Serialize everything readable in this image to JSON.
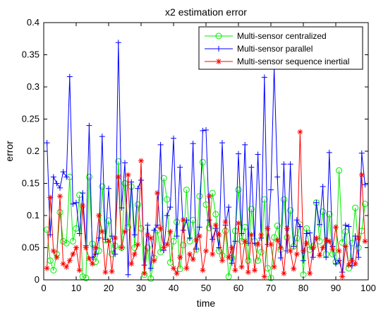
{
  "chart_data": {
    "type": "line",
    "title": "x2 estimation error",
    "xlabel": "time",
    "ylabel": "error",
    "xlim": [
      0,
      100
    ],
    "ylim": [
      0,
      0.4
    ],
    "xticks": [
      0,
      10,
      20,
      30,
      40,
      50,
      60,
      70,
      80,
      90,
      100
    ],
    "yticks": [
      0,
      0.05,
      0.1,
      0.15,
      0.2,
      0.25,
      0.3,
      0.35,
      0.4
    ],
    "ytick_labels": [
      "0",
      "0.05",
      "0.1",
      "0.15",
      "0.2",
      "0.25",
      "0.3",
      "0.35",
      "0.4"
    ],
    "legend_position": "top-right",
    "x": [
      1,
      2,
      3,
      4,
      5,
      6,
      7,
      8,
      9,
      10,
      11,
      12,
      13,
      14,
      15,
      16,
      17,
      18,
      19,
      20,
      21,
      22,
      23,
      24,
      25,
      26,
      27,
      28,
      29,
      30,
      31,
      32,
      33,
      34,
      35,
      36,
      37,
      38,
      39,
      40,
      41,
      42,
      43,
      44,
      45,
      46,
      47,
      48,
      49,
      50,
      51,
      52,
      53,
      54,
      55,
      56,
      57,
      58,
      59,
      60,
      61,
      62,
      63,
      64,
      65,
      66,
      67,
      68,
      69,
      70,
      71,
      72,
      73,
      74,
      75,
      76,
      77,
      78,
      79,
      80,
      81,
      82,
      83,
      84,
      85,
      86,
      87,
      88,
      89,
      90,
      91,
      92,
      93,
      94,
      95,
      96,
      97,
      98,
      99
    ],
    "series": [
      {
        "name": "Multi-sensor centralized",
        "color": "#00ee00",
        "marker": "circle",
        "values": [
          0.078,
          0.03,
          0.015,
          0.04,
          0.105,
          0.06,
          0.057,
          0.16,
          0.06,
          0.08,
          0.132,
          0.005,
          0.003,
          0.16,
          0.056,
          0.028,
          0.045,
          0.145,
          0.062,
          0.092,
          0.04,
          0.053,
          0.184,
          0.05,
          0.15,
          0.082,
          0.145,
          0.05,
          0.117,
          0.08,
          0.008,
          0.05,
          0.002,
          0.034,
          0.077,
          0.043,
          0.158,
          0.125,
          0.027,
          0.06,
          0.09,
          0.017,
          0.054,
          0.14,
          0.06,
          0.093,
          0.047,
          0.13,
          0.183,
          0.117,
          0.081,
          0.135,
          0.102,
          0.045,
          0.038,
          0.076,
          0.005,
          0.034,
          0.076,
          0.14,
          0.06,
          0.082,
          0.03,
          0.11,
          0.06,
          0.03,
          0.043,
          0.125,
          0.018,
          0.003,
          0.066,
          0.084,
          0.047,
          0.125,
          0.066,
          0.108,
          0.052,
          0.065,
          0.086,
          0.008,
          0.08,
          0.047,
          0.052,
          0.12,
          0.06,
          0.106,
          0.04,
          0.102,
          0.04,
          0.028,
          0.17,
          0.058,
          0.075,
          0.018,
          0.057,
          0.112,
          0.05,
          0.076,
          0.118
        ]
      },
      {
        "name": "Multi-sensor parallel",
        "color": "#0000ff",
        "marker": "plus",
        "values": [
          0.213,
          0.07,
          0.16,
          0.15,
          0.143,
          0.168,
          0.16,
          0.316,
          0.118,
          0.12,
          0.072,
          0.135,
          0.053,
          0.24,
          0.035,
          0.04,
          0.065,
          0.223,
          0.063,
          0.142,
          0.068,
          0.04,
          0.369,
          0.112,
          0.182,
          0.008,
          0.152,
          0.07,
          0.142,
          0.155,
          0.023,
          0.085,
          0.018,
          0.077,
          0.085,
          0.21,
          0.046,
          0.1,
          0.113,
          0.22,
          0.068,
          0.175,
          0.077,
          0.093,
          0.065,
          0.212,
          0.048,
          0.082,
          0.232,
          0.233,
          0.093,
          0.063,
          0.08,
          0.05,
          0.213,
          0.085,
          0.113,
          0.026,
          0.06,
          0.196,
          0.072,
          0.21,
          0.057,
          0.175,
          0.057,
          0.195,
          0.065,
          0.315,
          0.055,
          0.14,
          0.33,
          0.16,
          0.034,
          0.18,
          0.045,
          0.18,
          0.052,
          0.093,
          0.083,
          0.03,
          0.072,
          0.073,
          0.035,
          0.12,
          0.086,
          0.145,
          0.035,
          0.198,
          0.052,
          0.025,
          0.03,
          0.012,
          0.085,
          0.083,
          0.022,
          0.068,
          0.035,
          0.197,
          0.148
        ]
      },
      {
        "name": "Multi-sensor sequence inertial",
        "color": "#ff0000",
        "marker": "asterisk",
        "values": [
          0.018,
          0.128,
          0.045,
          0.035,
          0.13,
          0.025,
          0.02,
          0.03,
          0.04,
          0.05,
          0.015,
          0.115,
          0.05,
          0.033,
          0.025,
          0.05,
          0.1,
          0.075,
          0.012,
          0.06,
          0.013,
          0.065,
          0.16,
          0.05,
          0.075,
          0.163,
          0.025,
          0.04,
          0.055,
          0.185,
          0.01,
          0.07,
          0.065,
          0.03,
          0.135,
          0.08,
          0.05,
          0.055,
          0.075,
          0.018,
          0.01,
          0.035,
          0.093,
          0.018,
          0.04,
          0.032,
          0.062,
          0.068,
          0.015,
          0.045,
          0.13,
          0.04,
          0.085,
          0.07,
          0.03,
          0.09,
          0.035,
          0.05,
          0.015,
          0.088,
          0.02,
          0.06,
          0.012,
          0.07,
          0.015,
          0.055,
          0.07,
          0.005,
          0.08,
          0.055,
          0.02,
          0.062,
          0.05,
          0.01,
          0.08,
          0.045,
          0.017,
          0.04,
          0.23,
          0.045,
          0.057,
          0.01,
          0.05,
          0.065,
          0.038,
          0.05,
          0.062,
          0.06,
          0.048,
          0.082,
          0.045,
          0.005,
          0.052,
          0.023,
          0.03,
          0.025,
          0.065,
          0.163,
          0.06
        ]
      }
    ]
  }
}
